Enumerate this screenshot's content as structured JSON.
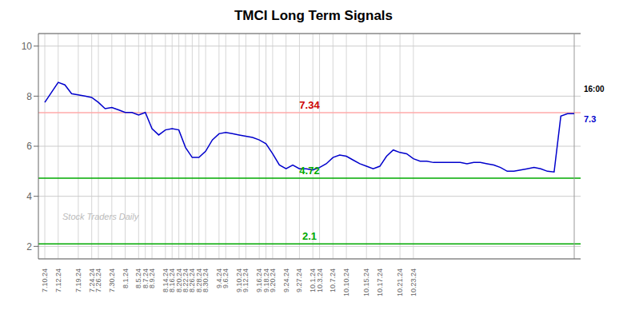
{
  "chart_data": {
    "type": "line",
    "title": "TMCI Long Term Signals",
    "categories": [
      "7.10.24",
      null,
      "7.12.24",
      null,
      null,
      "7.19.24",
      null,
      "7.24.24",
      "7.26.24",
      null,
      "7.30.24",
      null,
      "8.1.24",
      null,
      "8.5.24",
      "8.7.24",
      "8.9.24",
      null,
      "8.14.24",
      "8.16.24",
      "8.20.24",
      "8.22.24",
      "8.26.24",
      "8.28.24",
      "8.30.24",
      null,
      "9.4.24",
      "9.6.24",
      null,
      "9.10.24",
      "9.12.24",
      null,
      "9.16.24",
      "9.18.24",
      "9.20.24",
      null,
      "9.24.24",
      null,
      "9.27.24",
      null,
      "10.1.24",
      "10.3.24",
      null,
      "10.7.24",
      null,
      "10.10.24",
      null,
      null,
      "10.15.24",
      null,
      "10.17.24",
      null,
      null,
      "10.21.24",
      null,
      "10.23.24",
      null,
      null,
      null,
      null,
      null,
      null,
      null,
      null,
      null,
      null,
      null,
      null,
      null,
      null,
      null,
      null,
      null,
      null,
      null,
      null,
      null,
      null,
      null,
      null
    ],
    "values": [
      7.75,
      8.15,
      8.55,
      8.45,
      8.1,
      8.05,
      8.0,
      7.95,
      7.75,
      7.5,
      7.55,
      7.45,
      7.35,
      7.35,
      7.25,
      7.35,
      6.7,
      6.45,
      6.65,
      6.7,
      6.65,
      5.95,
      5.55,
      5.55,
      5.8,
      6.25,
      6.5,
      6.55,
      6.5,
      6.45,
      6.4,
      6.35,
      6.25,
      6.1,
      5.7,
      5.25,
      5.1,
      5.25,
      5.1,
      5.1,
      5.05,
      5.15,
      5.3,
      5.55,
      5.65,
      5.6,
      5.45,
      5.3,
      5.2,
      5.1,
      5.2,
      5.6,
      5.85,
      5.75,
      5.7,
      5.5,
      5.4,
      5.4,
      5.35,
      5.35,
      5.35,
      5.35,
      5.35,
      5.3,
      5.35,
      5.35,
      5.3,
      5.25,
      5.15,
      5.0,
      5.0,
      5.05,
      5.1,
      5.15,
      5.1,
      5.0,
      4.97,
      7.2,
      7.3,
      7.3
    ],
    "color": "#0000cc",
    "ylim": [
      1.5,
      10.5
    ],
    "yticks": [
      2,
      4,
      6,
      8,
      10
    ],
    "grid": true,
    "hlines": [
      {
        "y": 7.34,
        "label": "7.34",
        "color": "#ffaaaa",
        "label_color": "#cc0000"
      },
      {
        "y": 4.72,
        "label": "4.72",
        "color": "#00aa00",
        "label_color": "#00aa00"
      },
      {
        "y": 2.1,
        "label": "2.1",
        "color": "#00aa00",
        "label_color": "#00aa00"
      }
    ],
    "annotations": [
      {
        "text": "16:00",
        "color": "#000000"
      },
      {
        "text": "7.3",
        "color": "#0000cc"
      },
      {
        "text": "Stock Traders Daily",
        "color": "#bbbbbb"
      }
    ]
  }
}
